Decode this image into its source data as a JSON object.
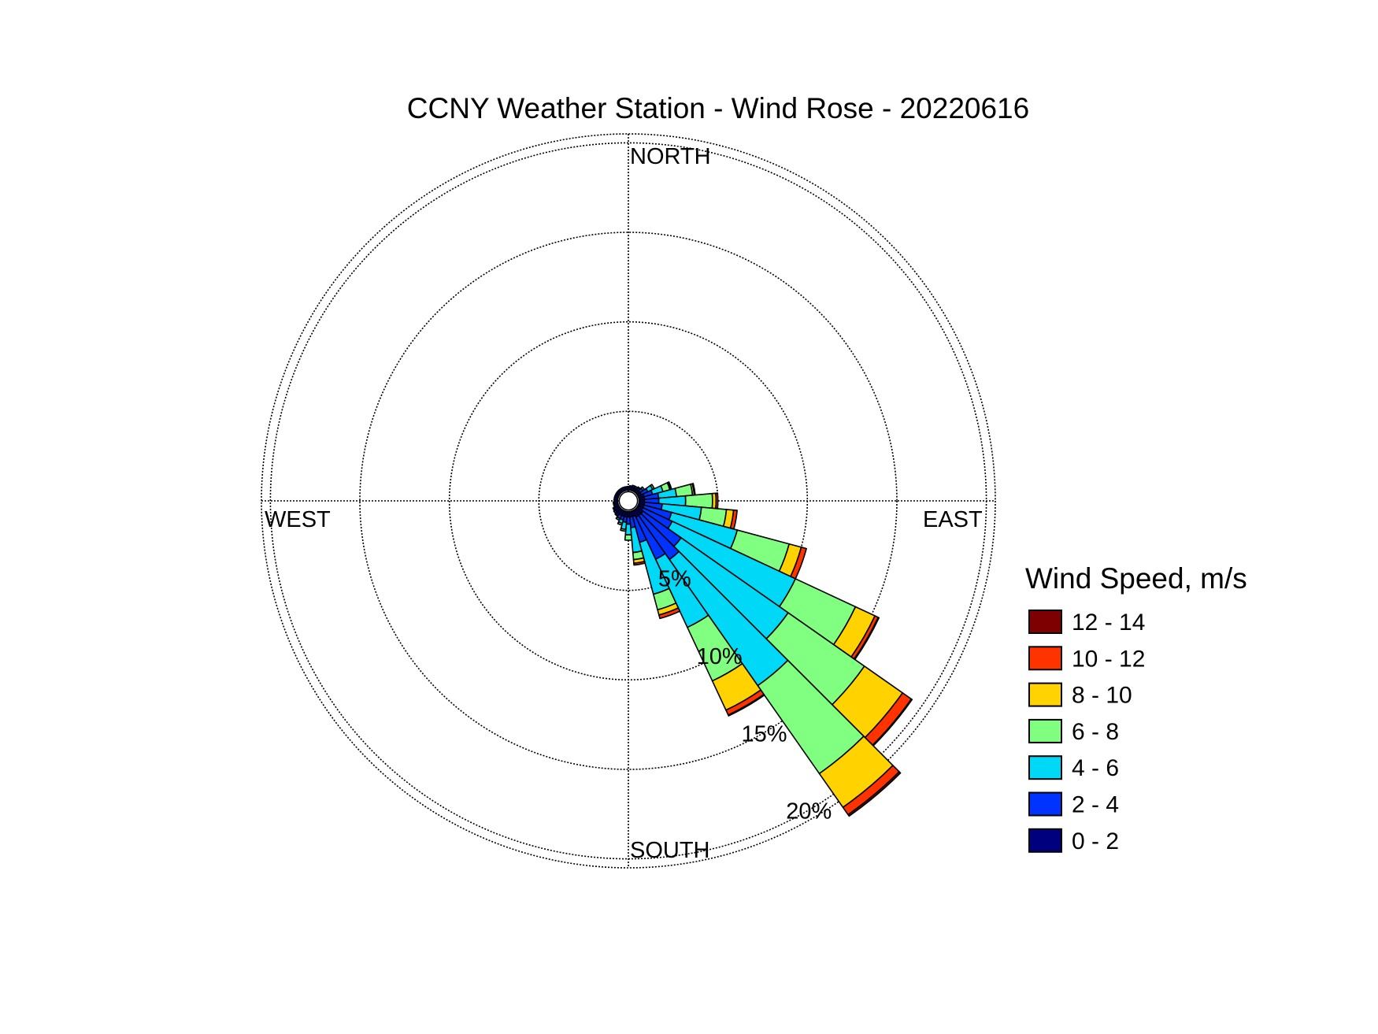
{
  "chart_data": {
    "type": "wind-rose",
    "title": "CCNY Weather Station - Wind Rose - 20220616",
    "direction_labels": {
      "north": "NORTH",
      "east": "EAST",
      "south": "SOUTH",
      "west": "WEST"
    },
    "ring_labels": [
      "5%",
      "10%",
      "15%",
      "20%"
    ],
    "rings_percent": [
      5,
      10,
      15,
      20
    ],
    "rmax_percent": 20.5,
    "grid": true,
    "legend": {
      "title": "Wind Speed, m/s",
      "placement": "right",
      "bins": [
        {
          "label": "12 - 14",
          "color": "#7f0000"
        },
        {
          "label": "10 - 12",
          "color": "#ff3300"
        },
        {
          "label": "8 - 10",
          "color": "#ffd200"
        },
        {
          "label": "6 - 8",
          "color": "#80ff80"
        },
        {
          "label": "4 - 6",
          "color": "#00d8f8"
        },
        {
          "label": "2 - 4",
          "color": "#0033ff"
        },
        {
          "label": "0 - 2",
          "color": "#00007f"
        }
      ]
    },
    "bin_order_inner_to_outer": [
      "0 - 2",
      "2 - 4",
      "4 - 6",
      "6 - 8",
      "8 - 10",
      "10 - 12",
      "12 - 14"
    ],
    "sector_width_deg": 10,
    "sectors": [
      {
        "direction_deg": 80,
        "values": [
          0.3,
          0.8,
          1.0,
          0.9,
          0.1,
          0.05,
          0.0
        ]
      },
      {
        "direction_deg": 90,
        "values": [
          0.3,
          0.8,
          1.5,
          1.5,
          0.2,
          0.1,
          0.0
        ]
      },
      {
        "direction_deg": 100,
        "values": [
          0.3,
          1.0,
          2.2,
          1.4,
          0.4,
          0.2,
          0.0
        ]
      },
      {
        "direction_deg": 110,
        "values": [
          0.3,
          1.6,
          3.8,
          3.0,
          0.7,
          0.3,
          0.0
        ]
      },
      {
        "direction_deg": 120,
        "values": [
          0.3,
          1.8,
          7.6,
          3.7,
          1.2,
          0.2,
          0.05
        ]
      },
      {
        "direction_deg": 130,
        "values": [
          0.4,
          2.6,
          7.3,
          5.2,
          2.6,
          0.6,
          0.05
        ]
      },
      {
        "direction_deg": 140,
        "values": [
          0.4,
          3.0,
          8.6,
          6.0,
          2.3,
          0.5,
          0.1
        ]
      },
      {
        "direction_deg": 150,
        "values": [
          0.4,
          2.6,
          4.2,
          3.3,
          1.8,
          0.3,
          0.05
        ]
      },
      {
        "direction_deg": 160,
        "values": [
          0.3,
          1.5,
          3.0,
          0.9,
          0.3,
          0.2,
          0.0
        ]
      },
      {
        "direction_deg": 170,
        "values": [
          0.3,
          0.6,
          1.4,
          0.4,
          0.2,
          0.1,
          0.0
        ]
      },
      {
        "direction_deg": 180,
        "values": [
          0.3,
          0.4,
          0.6,
          0.3,
          0.0,
          0.0,
          0.0
        ]
      },
      {
        "direction_deg": 190,
        "values": [
          0.3,
          0.3,
          0.4,
          0.1,
          0.0,
          0.0,
          0.0
        ]
      },
      {
        "direction_deg": 200,
        "values": [
          0.3,
          0.2,
          0.2,
          0.1,
          0.0,
          0.0,
          0.0
        ]
      },
      {
        "direction_deg": 210,
        "values": [
          0.3,
          0.2,
          0.1,
          0.0,
          0.0,
          0.0,
          0.0
        ]
      },
      {
        "direction_deg": 220,
        "values": [
          0.3,
          0.1,
          0.05,
          0.0,
          0.0,
          0.0,
          0.0
        ]
      },
      {
        "direction_deg": 230,
        "values": [
          0.3,
          0.1,
          0.0,
          0.0,
          0.0,
          0.0,
          0.0
        ]
      },
      {
        "direction_deg": 240,
        "values": [
          0.3,
          0.05,
          0.0,
          0.0,
          0.0,
          0.0,
          0.0
        ]
      },
      {
        "direction_deg": 250,
        "values": [
          0.2,
          0.05,
          0.0,
          0.0,
          0.0,
          0.0,
          0.0
        ]
      },
      {
        "direction_deg": 260,
        "values": [
          0.2,
          0.05,
          0.0,
          0.0,
          0.0,
          0.0,
          0.0
        ]
      },
      {
        "direction_deg": 270,
        "values": [
          0.2,
          0.0,
          0.0,
          0.0,
          0.0,
          0.0,
          0.0
        ]
      },
      {
        "direction_deg": 280,
        "values": [
          0.2,
          0.0,
          0.0,
          0.0,
          0.0,
          0.0,
          0.0
        ]
      },
      {
        "direction_deg": 290,
        "values": [
          0.2,
          0.0,
          0.0,
          0.0,
          0.0,
          0.0,
          0.0
        ]
      },
      {
        "direction_deg": 300,
        "values": [
          0.2,
          0.0,
          0.0,
          0.0,
          0.0,
          0.0,
          0.0
        ]
      },
      {
        "direction_deg": 310,
        "values": [
          0.2,
          0.0,
          0.0,
          0.0,
          0.0,
          0.0,
          0.0
        ]
      },
      {
        "direction_deg": 320,
        "values": [
          0.2,
          0.0,
          0.0,
          0.0,
          0.0,
          0.0,
          0.0
        ]
      },
      {
        "direction_deg": 330,
        "values": [
          0.2,
          0.0,
          0.0,
          0.0,
          0.0,
          0.0,
          0.0
        ]
      },
      {
        "direction_deg": 340,
        "values": [
          0.2,
          0.0,
          0.0,
          0.0,
          0.0,
          0.0,
          0.0
        ]
      },
      {
        "direction_deg": 350,
        "values": [
          0.2,
          0.0,
          0.0,
          0.0,
          0.0,
          0.0,
          0.0
        ]
      },
      {
        "direction_deg": 0,
        "values": [
          0.2,
          0.0,
          0.0,
          0.0,
          0.0,
          0.0,
          0.0
        ]
      },
      {
        "direction_deg": 10,
        "values": [
          0.2,
          0.05,
          0.0,
          0.0,
          0.0,
          0.0,
          0.0
        ]
      },
      {
        "direction_deg": 20,
        "values": [
          0.2,
          0.1,
          0.0,
          0.0,
          0.0,
          0.0,
          0.0
        ]
      },
      {
        "direction_deg": 30,
        "values": [
          0.2,
          0.1,
          0.0,
          0.0,
          0.0,
          0.0,
          0.0
        ]
      },
      {
        "direction_deg": 40,
        "values": [
          0.2,
          0.1,
          0.05,
          0.0,
          0.0,
          0.0,
          0.0
        ]
      },
      {
        "direction_deg": 50,
        "values": [
          0.2,
          0.2,
          0.1,
          0.0,
          0.0,
          0.0,
          0.0
        ]
      },
      {
        "direction_deg": 60,
        "values": [
          0.2,
          0.4,
          0.3,
          0.1,
          0.0,
          0.0,
          0.0
        ]
      },
      {
        "direction_deg": 70,
        "values": [
          0.3,
          0.5,
          0.6,
          0.4,
          0.05,
          0.05,
          0.0
        ]
      }
    ]
  }
}
